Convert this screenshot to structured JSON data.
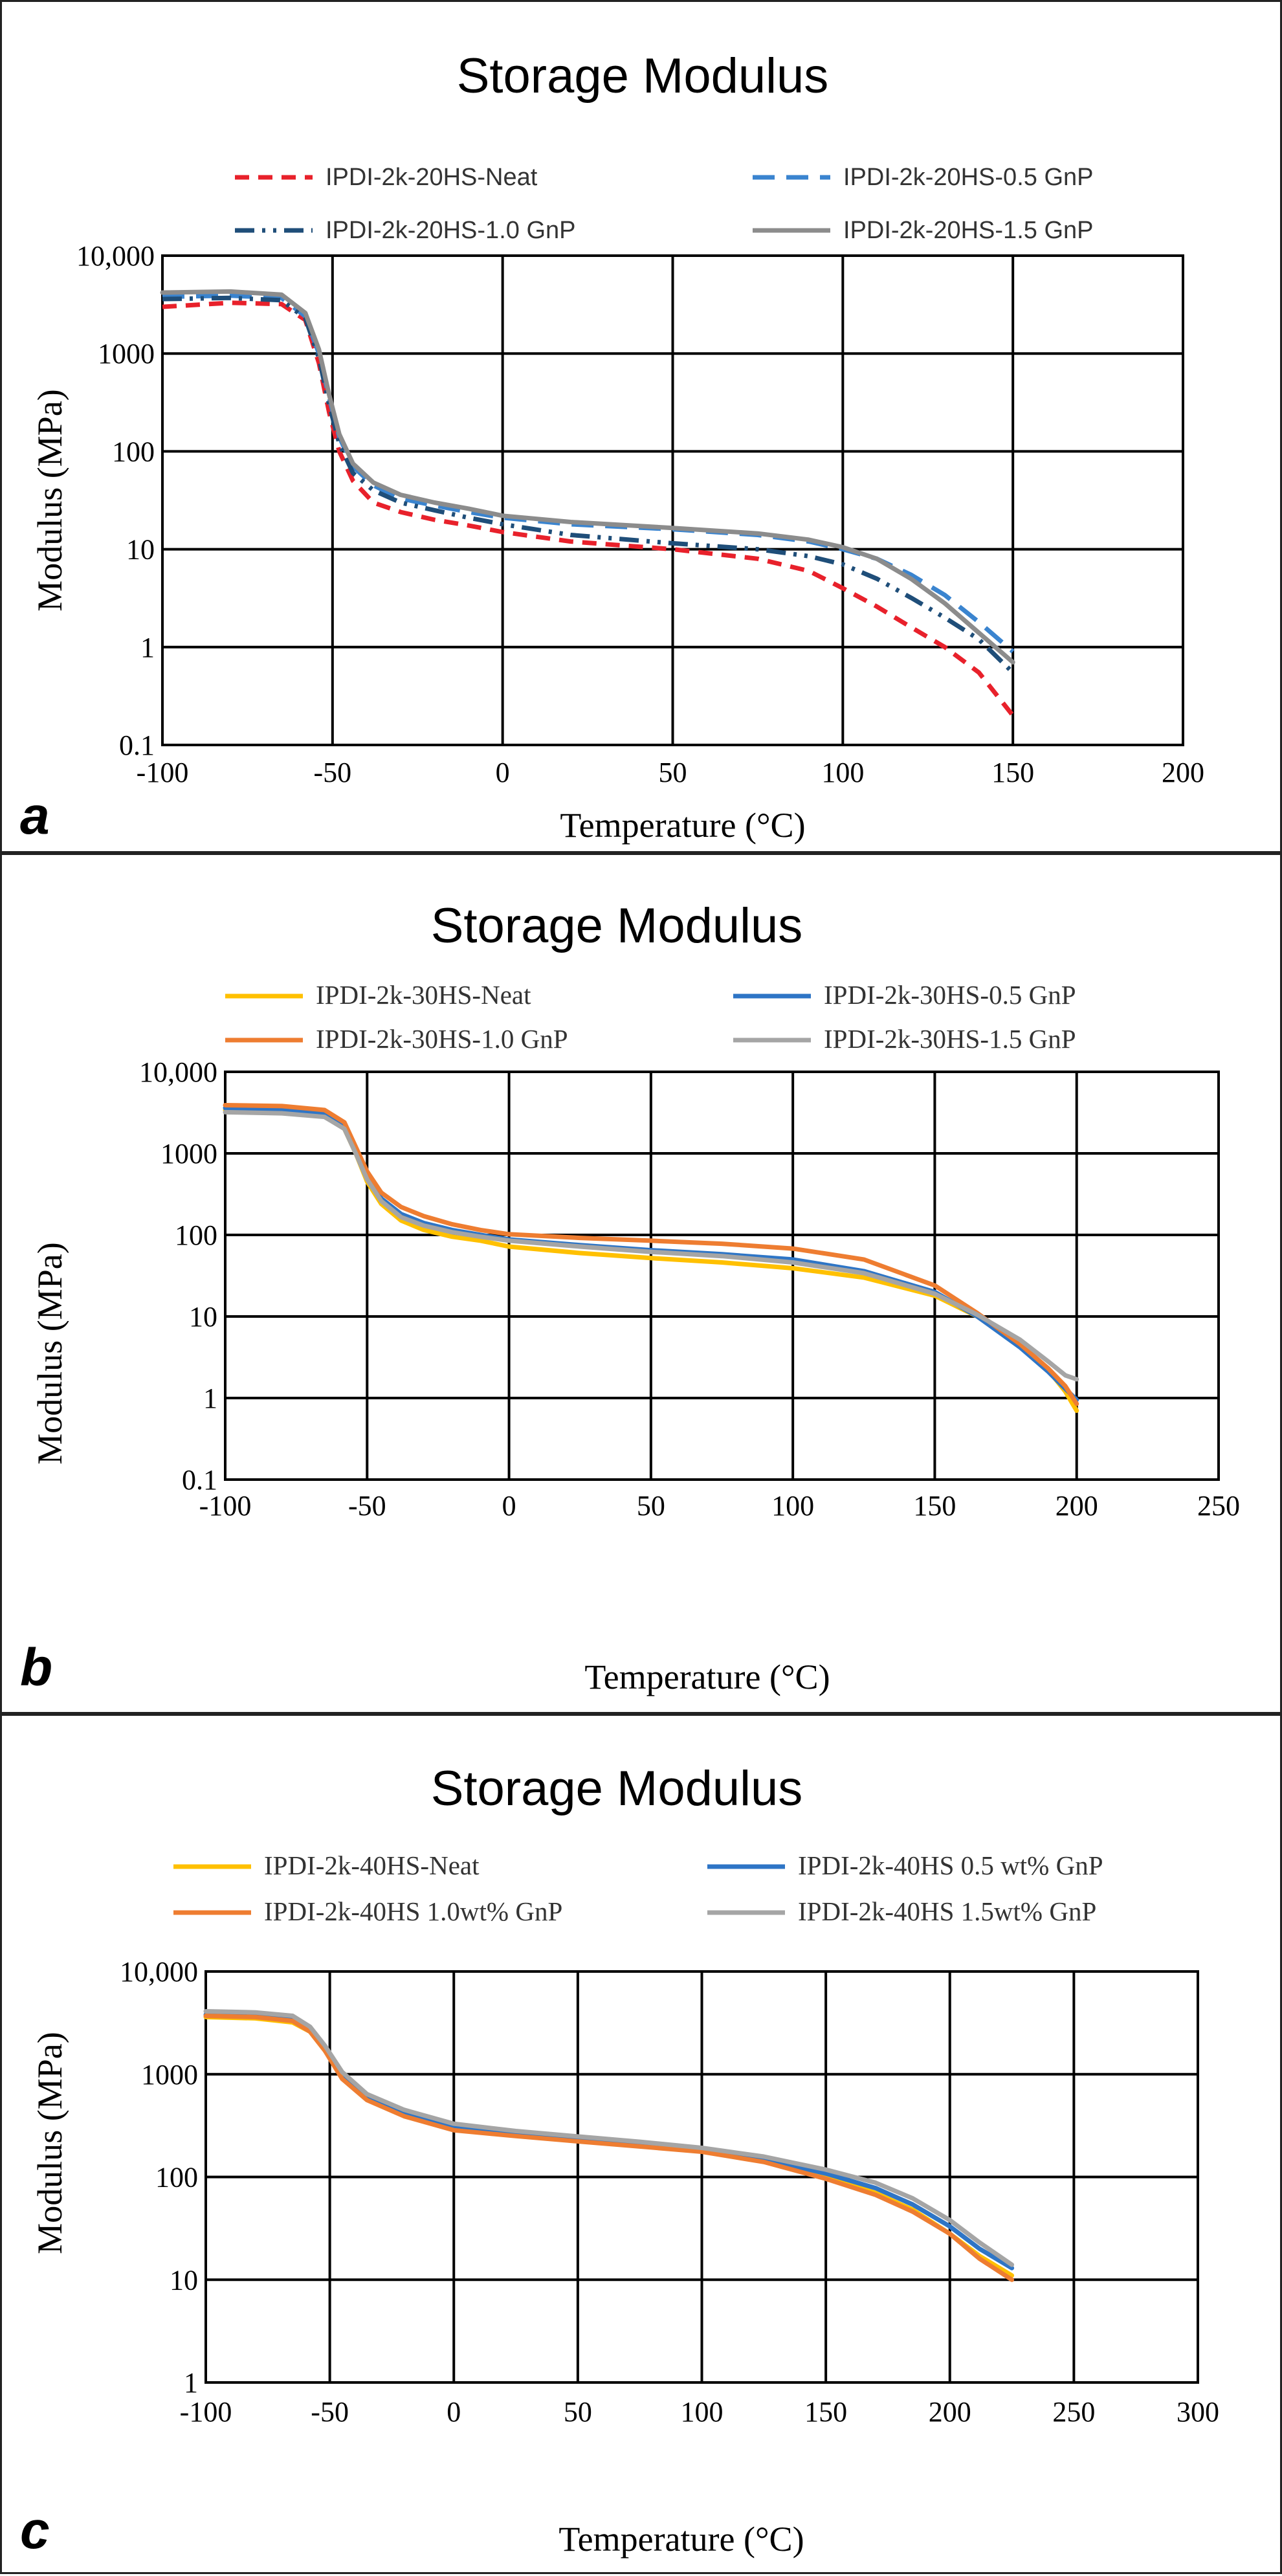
{
  "chart_data": [
    {
      "type": "line",
      "panel_label": "a",
      "title": "Storage Modulus",
      "xlabel": "Temperature (°C)",
      "ylabel": "Modulus (MPa)",
      "yscale": "log",
      "xlim": [
        -100,
        200
      ],
      "ylim": [
        0.1,
        10000
      ],
      "xticks": [
        -100,
        -50,
        0,
        50,
        100,
        150,
        200
      ],
      "xtick_labels": [
        "-100",
        "-50",
        "0",
        "50",
        "100",
        "150",
        "200"
      ],
      "yticks": [
        0.1,
        1,
        10,
        100,
        1000,
        10000
      ],
      "ytick_labels": [
        "0.1",
        "1",
        "10",
        "100",
        "1000",
        "10,000"
      ],
      "legend_font": "sans",
      "series": [
        {
          "name": "IPDI-2k-20HS-Neat",
          "color": "#e8212b",
          "dash": "dashed",
          "x": [
            -100,
            -80,
            -65,
            -58,
            -54,
            -51,
            -48,
            -44,
            -38,
            -30,
            -20,
            -10,
            0,
            20,
            50,
            75,
            90,
            100,
            110,
            120,
            130,
            140,
            150
          ],
          "y": [
            3000,
            3300,
            3200,
            2200,
            800,
            250,
            100,
            50,
            30,
            24,
            20,
            17.5,
            15,
            12,
            10,
            8,
            6,
            4,
            2.6,
            1.6,
            1.0,
            0.55,
            0.2
          ]
        },
        {
          "name": "IPDI-2k-20HS-0.5 GnP",
          "color": "#3a84cf",
          "dash": "longdash",
          "x": [
            -100,
            -80,
            -65,
            -58,
            -54,
            -51,
            -48,
            -44,
            -38,
            -30,
            -20,
            -10,
            0,
            20,
            50,
            75,
            90,
            100,
            110,
            120,
            130,
            140,
            150
          ],
          "y": [
            3800,
            3900,
            3700,
            2400,
            1000,
            350,
            140,
            70,
            45,
            33,
            28,
            24,
            21,
            18,
            16,
            14,
            12,
            10,
            8,
            5.5,
            3.4,
            1.8,
            0.9
          ]
        },
        {
          "name": "IPDI-2k-20HS-1.0 GnP",
          "color": "#1f4e79",
          "dash": "dashdotdot",
          "x": [
            -100,
            -80,
            -65,
            -58,
            -54,
            -51,
            -48,
            -44,
            -38,
            -30,
            -20,
            -10,
            0,
            20,
            50,
            75,
            90,
            100,
            110,
            120,
            130,
            140,
            150
          ],
          "y": [
            3600,
            3700,
            3500,
            2300,
            900,
            300,
            120,
            60,
            40,
            30,
            25,
            21,
            18,
            14,
            11.5,
            10,
            8.5,
            7,
            5,
            3.2,
            2.0,
            1.2,
            0.55
          ]
        },
        {
          "name": "IPDI-2k-20HS-1.5 GnP",
          "color": "#8c8c8c",
          "dash": "solid",
          "x": [
            -100,
            -80,
            -65,
            -58,
            -54,
            -51,
            -48,
            -44,
            -38,
            -30,
            -20,
            -10,
            0,
            20,
            50,
            75,
            90,
            100,
            110,
            120,
            130,
            140,
            150
          ],
          "y": [
            4200,
            4300,
            4000,
            2600,
            1100,
            380,
            150,
            75,
            48,
            36,
            30,
            26,
            22,
            19,
            16.5,
            14.5,
            12.5,
            10.5,
            8,
            5,
            2.8,
            1.4,
            0.7
          ]
        }
      ]
    },
    {
      "type": "line",
      "panel_label": "b",
      "title": "Storage Modulus",
      "xlabel": "Temperature (°C)",
      "ylabel": "Modulus (MPa)",
      "yscale": "log",
      "xlim": [
        -100,
        250
      ],
      "ylim": [
        0.1,
        10000
      ],
      "xticks": [
        -100,
        -50,
        0,
        50,
        100,
        150,
        200,
        250
      ],
      "xtick_labels": [
        "-100",
        "-50",
        "0",
        "50",
        "100",
        "150",
        "200",
        "250"
      ],
      "yticks": [
        0.1,
        1,
        10,
        100,
        1000,
        10000
      ],
      "ytick_labels": [
        "0.1",
        "1",
        "10",
        "100",
        "1000",
        "10,000"
      ],
      "legend_font": "serif",
      "series": [
        {
          "name": "IPDI-2k-30HS-Neat",
          "color": "#ffc000",
          "dash": "solid",
          "x": [
            -100,
            -80,
            -65,
            -58,
            -54,
            -50,
            -45,
            -38,
            -30,
            -20,
            -10,
            0,
            25,
            50,
            75,
            100,
            125,
            150,
            165,
            180,
            190,
            196,
            200
          ],
          "y": [
            3400,
            3300,
            2900,
            2000,
            1000,
            450,
            240,
            150,
            115,
            95,
            85,
            72,
            60,
            52,
            46,
            39,
            30,
            18,
            10,
            4.5,
            2.2,
            1.2,
            0.7
          ]
        },
        {
          "name": "IPDI-2k-30HS-0.5 GnP",
          "color": "#2e75c6",
          "dash": "solid",
          "x": [
            -100,
            -80,
            -65,
            -58,
            -54,
            -50,
            -45,
            -38,
            -30,
            -20,
            -10,
            0,
            25,
            50,
            75,
            100,
            125,
            150,
            165,
            180,
            190,
            196,
            200
          ],
          "y": [
            3600,
            3500,
            3100,
            2200,
            1100,
            520,
            280,
            180,
            140,
            115,
            100,
            88,
            75,
            65,
            58,
            50,
            36,
            20,
            10,
            4.2,
            2.1,
            1.3,
            0.95
          ]
        },
        {
          "name": "IPDI-2k-30HS-1.0 GnP",
          "color": "#ee7d31",
          "dash": "solid",
          "x": [
            -100,
            -80,
            -65,
            -58,
            -54,
            -50,
            -45,
            -38,
            -30,
            -20,
            -10,
            0,
            25,
            50,
            75,
            100,
            125,
            150,
            165,
            180,
            190,
            196,
            200
          ],
          "y": [
            3900,
            3800,
            3400,
            2400,
            1200,
            600,
            330,
            220,
            170,
            135,
            115,
            102,
            92,
            85,
            78,
            68,
            50,
            24,
            11,
            4.6,
            2.3,
            1.4,
            0.85
          ]
        },
        {
          "name": "IPDI-2k-30HS-1.5 GnP",
          "color": "#a5a5a5",
          "dash": "solid",
          "x": [
            -100,
            -80,
            -65,
            -58,
            -54,
            -50,
            -45,
            -38,
            -30,
            -20,
            -10,
            0,
            25,
            50,
            75,
            100,
            125,
            150,
            165,
            180,
            190,
            196,
            200
          ],
          "y": [
            3200,
            3100,
            2800,
            2000,
            1000,
            480,
            260,
            165,
            130,
            108,
            95,
            85,
            72,
            62,
            55,
            46,
            34,
            19,
            10.5,
            5.2,
            2.8,
            1.9,
            1.7
          ]
        }
      ]
    },
    {
      "type": "line",
      "panel_label": "c",
      "title": "Storage Modulus",
      "xlabel": "Temperature (°C)",
      "ylabel": "Modulus (MPa)",
      "yscale": "log",
      "xlim": [
        -100,
        300
      ],
      "ylim": [
        1,
        10000
      ],
      "xticks": [
        -100,
        -50,
        0,
        50,
        100,
        150,
        200,
        250,
        300
      ],
      "xtick_labels": [
        "-100",
        "-50",
        "0",
        "50",
        "100",
        "150",
        "200",
        "250",
        "300"
      ],
      "yticks": [
        1,
        10,
        100,
        1000,
        10000
      ],
      "ytick_labels": [
        "1",
        "10",
        "100",
        "1000",
        "10,000"
      ],
      "legend_font": "serif",
      "series": [
        {
          "name": "IPDI-2k-40HS-Neat",
          "color": "#ffc000",
          "dash": "solid",
          "x": [
            -100,
            -80,
            -65,
            -58,
            -52,
            -45,
            -35,
            -20,
            0,
            25,
            50,
            75,
            100,
            125,
            150,
            170,
            185,
            200,
            212,
            225
          ],
          "y": [
            3600,
            3500,
            3200,
            2600,
            1700,
            950,
            580,
            410,
            300,
            260,
            230,
            205,
            180,
            145,
            100,
            70,
            48,
            28,
            17,
            11
          ]
        },
        {
          "name": "IPDI-2k-40HS 0.5 wt% GnP",
          "color": "#2e75c6",
          "dash": "solid",
          "x": [
            -100,
            -80,
            -65,
            -58,
            -52,
            -45,
            -35,
            -20,
            0,
            25,
            50,
            75,
            100,
            125,
            150,
            170,
            185,
            200,
            212,
            225
          ],
          "y": [
            3800,
            3700,
            3400,
            2700,
            1800,
            1000,
            610,
            430,
            315,
            270,
            240,
            212,
            186,
            150,
            108,
            78,
            54,
            33,
            20,
            13
          ]
        },
        {
          "name": "IPDI-2k-40HS 1.0wt% GnP",
          "color": "#ee7d31",
          "dash": "solid",
          "x": [
            -100,
            -80,
            -65,
            -58,
            -52,
            -45,
            -35,
            -20,
            0,
            25,
            50,
            75,
            100,
            125,
            150,
            170,
            185,
            200,
            212,
            225
          ],
          "y": [
            3700,
            3600,
            3300,
            2600,
            1700,
            900,
            560,
            390,
            285,
            250,
            222,
            198,
            176,
            140,
            96,
            67,
            46,
            28,
            16,
            10
          ]
        },
        {
          "name": "IPDI-2k-40HS 1.5wt% GnP",
          "color": "#a5a5a5",
          "dash": "solid",
          "x": [
            -100,
            -80,
            -65,
            -58,
            -52,
            -45,
            -35,
            -20,
            0,
            25,
            50,
            75,
            100,
            125,
            150,
            170,
            185,
            200,
            212,
            225
          ],
          "y": [
            4100,
            4000,
            3700,
            2900,
            1900,
            1050,
            640,
            450,
            330,
            280,
            248,
            220,
            192,
            158,
            118,
            88,
            62,
            38,
            23,
            14
          ]
        }
      ]
    }
  ]
}
